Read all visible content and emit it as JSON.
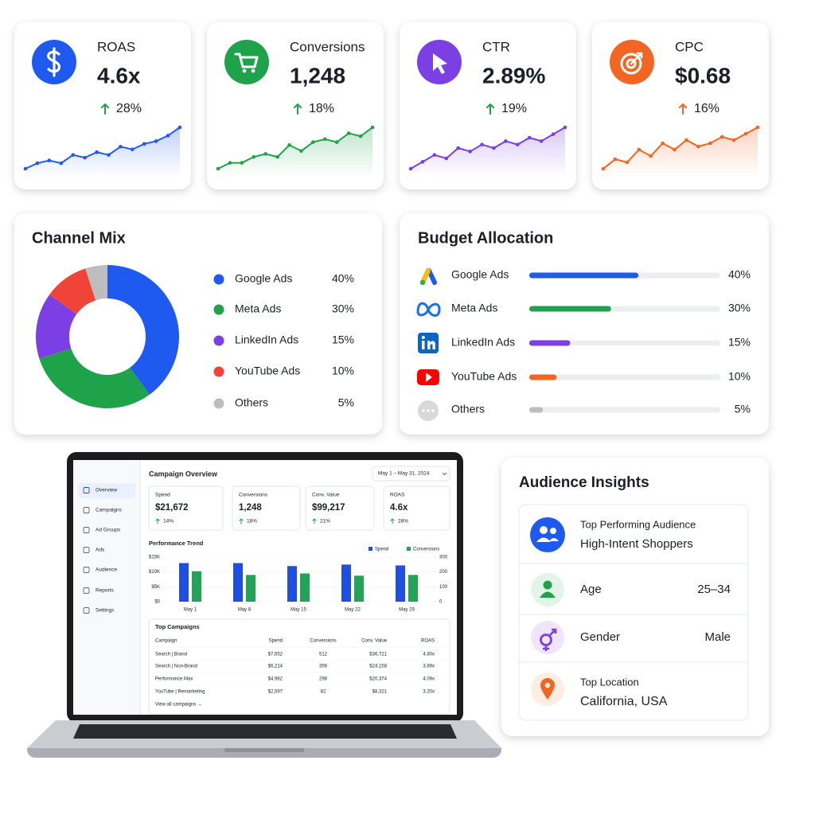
{
  "kpis": [
    {
      "label": "ROAS",
      "value": "4.6x",
      "change": "28%",
      "color": "#1f5af0",
      "change_color": "#1fa34a",
      "trend": [
        2,
        3,
        3.5,
        3,
        4.5,
        4,
        5,
        4.5,
        6,
        5.5,
        6.5,
        7,
        8,
        9.5
      ]
    },
    {
      "label": "Conversions",
      "value": "1,248",
      "change": "18%",
      "color": "#1fa34a",
      "change_color": "#1fa34a",
      "trend": [
        2,
        3,
        3,
        4,
        4.5,
        4,
        6,
        5,
        6.5,
        7,
        6.5,
        8,
        7.5,
        9
      ]
    },
    {
      "label": "CTR",
      "value": "2.89%",
      "change": "19%",
      "color": "#7b3fe4",
      "change_color": "#1fa34a",
      "trend": [
        2,
        3,
        4,
        3.5,
        5,
        4.5,
        5.5,
        5,
        6,
        5.5,
        6.5,
        6,
        7,
        8
      ]
    },
    {
      "label": "CPC",
      "value": "$0.68",
      "change": "16%",
      "color": "#f26522",
      "change_color": "#f26522",
      "trend": [
        2,
        3.5,
        3,
        5,
        4,
        6,
        5,
        6.5,
        5.5,
        6,
        7,
        6.5,
        7.5,
        8.5
      ]
    }
  ],
  "channel_mix": {
    "type": "pie",
    "title": "Channel Mix",
    "categories": [
      "Google Ads",
      "Meta Ads",
      "LinkedIn Ads",
      "YouTube Ads",
      "Others"
    ],
    "values": [
      40,
      30,
      15,
      10,
      5
    ],
    "value_labels": [
      "40%",
      "30%",
      "15%",
      "10%",
      "5%"
    ],
    "colors": [
      "#1f5af0",
      "#1fa34a",
      "#7b3fe4",
      "#f04438",
      "#bdbdbd"
    ]
  },
  "budget_allocation": {
    "type": "bar",
    "title": "Budget Allocation",
    "categories": [
      "Google Ads",
      "Meta Ads",
      "LinkedIn Ads",
      "YouTube Ads",
      "Others"
    ],
    "values": [
      40,
      30,
      15,
      10,
      5
    ],
    "value_labels": [
      "40%",
      "30%",
      "15%",
      "10%",
      "5%"
    ],
    "colors": [
      "#1f5af0",
      "#1fa34a",
      "#7b3fe4",
      "#f26522",
      "#bdbdbd"
    ],
    "xlim": [
      0,
      70
    ]
  },
  "laptop": {
    "nav": [
      "Overview",
      "Campaigns",
      "Ad Groups",
      "Ads",
      "Audience",
      "Reports",
      "Settings"
    ],
    "title": "Campaign Overview",
    "date_range": "May 1 – May 31, 2024",
    "kpis": [
      {
        "label": "Spend",
        "value": "$21,672",
        "change": "14%"
      },
      {
        "label": "Conversions",
        "value": "1,248",
        "change": "18%"
      },
      {
        "label": "Conv. Value",
        "value": "$99,217",
        "change": "21%"
      },
      {
        "label": "ROAS",
        "value": "4.6x",
        "change": "28%"
      }
    ],
    "trend": {
      "type": "bar",
      "title": "Performance Trend",
      "categories": [
        "May 1",
        "May 8",
        "May 15",
        "May 22",
        "May 29"
      ],
      "series": [
        {
          "name": "Spend",
          "color": "#1f4fe0",
          "values": [
            13000,
            13000,
            12000,
            12500,
            12200
          ]
        },
        {
          "name": "Conversions",
          "color": "#22a355",
          "axis": "y2",
          "values": [
            205,
            180,
            190,
            175,
            180
          ]
        }
      ],
      "ylim": [
        0,
        15000
      ],
      "yticks": [
        {
          "value": 0,
          "label": "$0"
        },
        {
          "value": 5000,
          "label": "$5K"
        },
        {
          "value": 10000,
          "label": "$10K"
        },
        {
          "value": 15000,
          "label": "$15K"
        }
      ],
      "y2lim": [
        0,
        300
      ],
      "y2ticks": [
        0,
        100,
        200,
        300
      ]
    },
    "table": {
      "title": "Top Campaigns",
      "columns": [
        "Campaign",
        "Spend",
        "Conversions",
        "Conv. Value",
        "ROAS"
      ],
      "rows": [
        [
          "Search | Brand",
          "$7,652",
          "512",
          "$36,721",
          "4.80x"
        ],
        [
          "Search | Non-Brand",
          "$6,214",
          "356",
          "$24,158",
          "3.89x"
        ],
        [
          "Performance Max",
          "$4,982",
          "298",
          "$20,374",
          "4.09x"
        ],
        [
          "YouTube | Remarketing",
          "$2,597",
          "82",
          "$8,321",
          "3.20x"
        ]
      ],
      "link": "View all campaigns →"
    }
  },
  "audience": {
    "title": "Audience Insights",
    "items": [
      {
        "label": "Top Performing Audience",
        "value": "High-Intent Shoppers",
        "color": "#1f5af0"
      },
      {
        "label": "Age",
        "value": "25–34",
        "color": "#1fa34a"
      },
      {
        "label": "Gender",
        "value": "Male",
        "color": "#7b3fe4"
      },
      {
        "label": "Top Location",
        "value": "California, USA",
        "color": "#f26522"
      }
    ]
  }
}
